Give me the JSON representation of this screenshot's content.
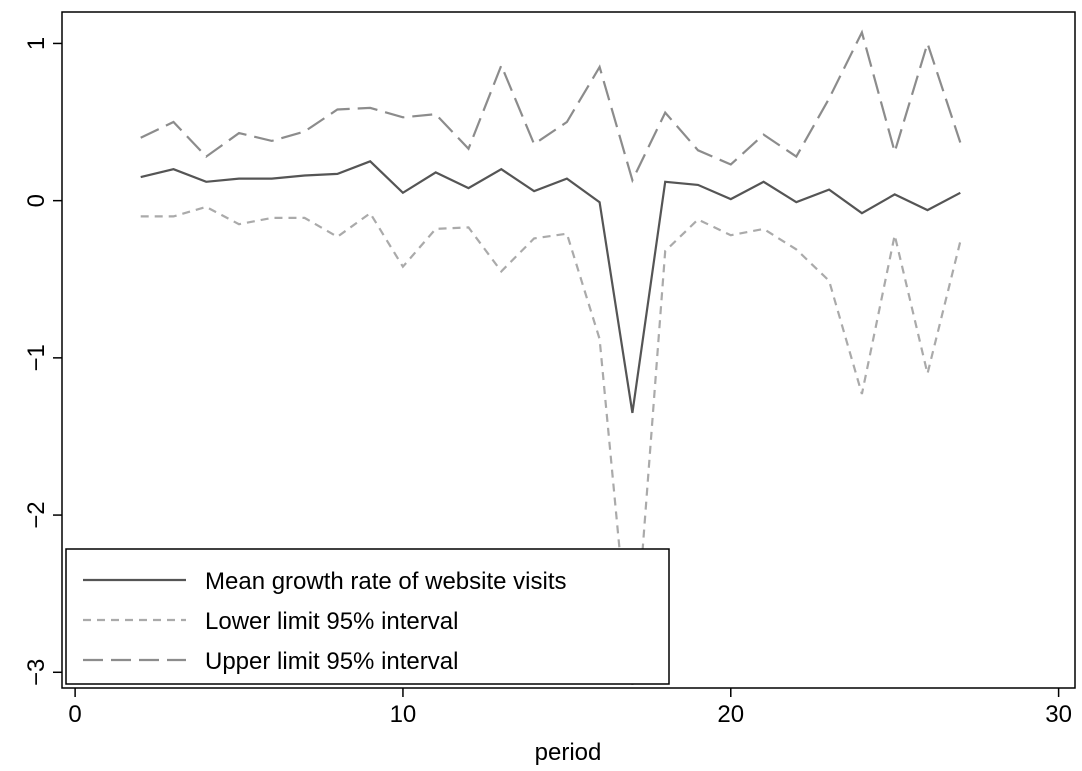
{
  "chart_data": {
    "type": "line",
    "xlabel": "period",
    "ylabel": "",
    "xlim": [
      -0.4,
      30.5
    ],
    "ylim": [
      -3.1,
      1.2
    ],
    "xticks": [
      0,
      10,
      20,
      30
    ],
    "yticks": [
      1,
      0,
      -1,
      -2,
      -3
    ],
    "grid": false,
    "legend": "bottom-left",
    "x": [
      2,
      3,
      4,
      5,
      6,
      7,
      8,
      9,
      10,
      11,
      12,
      13,
      14,
      15,
      16,
      17,
      18,
      19,
      20,
      21,
      22,
      23,
      24,
      25,
      26,
      27
    ],
    "series": [
      {
        "name": "Mean growth rate of website visits",
        "color": "#555555",
        "dash": "solid",
        "values": [
          0.15,
          0.2,
          0.12,
          0.14,
          0.14,
          0.16,
          0.17,
          0.25,
          0.05,
          0.18,
          0.08,
          0.2,
          0.06,
          0.14,
          -0.01,
          -1.35,
          0.12,
          0.1,
          0.01,
          0.12,
          -0.01,
          0.07,
          -0.08,
          0.04,
          -0.06,
          0.05
        ]
      },
      {
        "name": "Lower limit 95% interval",
        "color": "#aaaaaa",
        "dash": "short",
        "values": [
          -0.1,
          -0.1,
          -0.04,
          -0.15,
          -0.11,
          -0.11,
          -0.23,
          -0.08,
          -0.42,
          -0.18,
          -0.17,
          -0.45,
          -0.24,
          -0.21,
          -0.88,
          -3.08,
          -0.32,
          -0.12,
          -0.22,
          -0.18,
          -0.31,
          -0.51,
          -1.23,
          -0.22,
          -1.1,
          -0.26
        ]
      },
      {
        "name": "Upper limit 95% interval",
        "color": "#8c8c8c",
        "dash": "long",
        "values": [
          0.4,
          0.5,
          0.28,
          0.43,
          0.38,
          0.44,
          0.58,
          0.59,
          0.53,
          0.55,
          0.33,
          0.86,
          0.36,
          0.5,
          0.85,
          0.13,
          0.56,
          0.32,
          0.23,
          0.42,
          0.28,
          0.65,
          1.07,
          0.31,
          1.0,
          0.37
        ]
      }
    ]
  }
}
